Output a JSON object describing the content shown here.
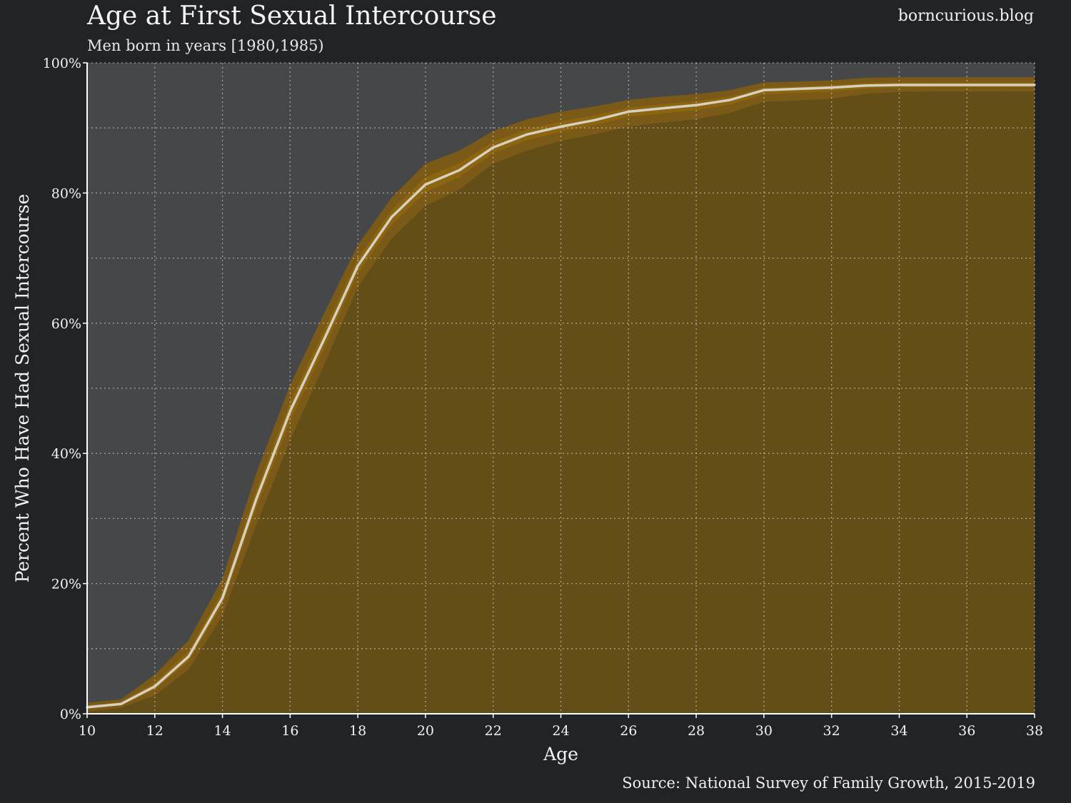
{
  "header": {
    "title": "Age at First Sexual Intercourse",
    "subtitle": "Men born in years [1980,1985)",
    "brand": "borncurious.blog"
  },
  "footer": {
    "source": "Source: National Survey of Family Growth, 2015-2019"
  },
  "colors": {
    "background": "#222326",
    "plot_bg": "#464749",
    "band_outer": "#7a5a16",
    "band_inner": "#8c6510",
    "fill_under": "#644e17",
    "line": "#d8d0c0"
  },
  "chart_data": {
    "type": "area",
    "title": "Age at First Sexual Intercourse",
    "subtitle": "Men born in years [1980,1985)",
    "xlabel": "Age",
    "ylabel": "Percent Who Have Had Sexual Intercourse",
    "xlim": [
      10,
      38
    ],
    "ylim": [
      0,
      100
    ],
    "x_ticks": [
      "10",
      "12",
      "14",
      "16",
      "18",
      "20",
      "22",
      "24",
      "26",
      "28",
      "30",
      "32",
      "34",
      "36",
      "38"
    ],
    "y_ticks": [
      "0%",
      "20%",
      "40%",
      "60%",
      "80%",
      "100%"
    ],
    "grid": true,
    "x": [
      10,
      11,
      12,
      13,
      14,
      15,
      16,
      17,
      18,
      19,
      20,
      21,
      22,
      23,
      24,
      25,
      26,
      27,
      28,
      29,
      30,
      31,
      32,
      33,
      34,
      35,
      36,
      37,
      38
    ],
    "series": [
      {
        "values": [
          1.0,
          1.5,
          4.2,
          8.8,
          17.8,
          33.0,
          46.5,
          57.5,
          68.8,
          76.3,
          81.3,
          83.5,
          87.0,
          89.0,
          90.2,
          91.2,
          92.5,
          93.0,
          93.5,
          94.3,
          95.8,
          96.0,
          96.2,
          96.5,
          96.6,
          96.6,
          96.6,
          96.6,
          96.6
        ],
        "lower": [
          0.3,
          0.9,
          2.8,
          6.8,
          15.0,
          29.0,
          42.0,
          53.5,
          65.5,
          73.0,
          78.0,
          80.5,
          84.5,
          86.5,
          88.0,
          89.0,
          90.2,
          90.8,
          91.3,
          92.3,
          94.0,
          94.2,
          94.5,
          95.2,
          95.5,
          95.6,
          95.6,
          95.6,
          95.6
        ],
        "upper": [
          1.7,
          2.2,
          6.0,
          11.3,
          20.8,
          37.0,
          50.5,
          61.5,
          72.0,
          79.3,
          84.5,
          86.5,
          89.5,
          91.3,
          92.5,
          93.3,
          94.3,
          94.8,
          95.2,
          95.8,
          97.0,
          97.1,
          97.3,
          97.7,
          97.8,
          97.8,
          97.8,
          97.8,
          97.8
        ]
      }
    ]
  }
}
